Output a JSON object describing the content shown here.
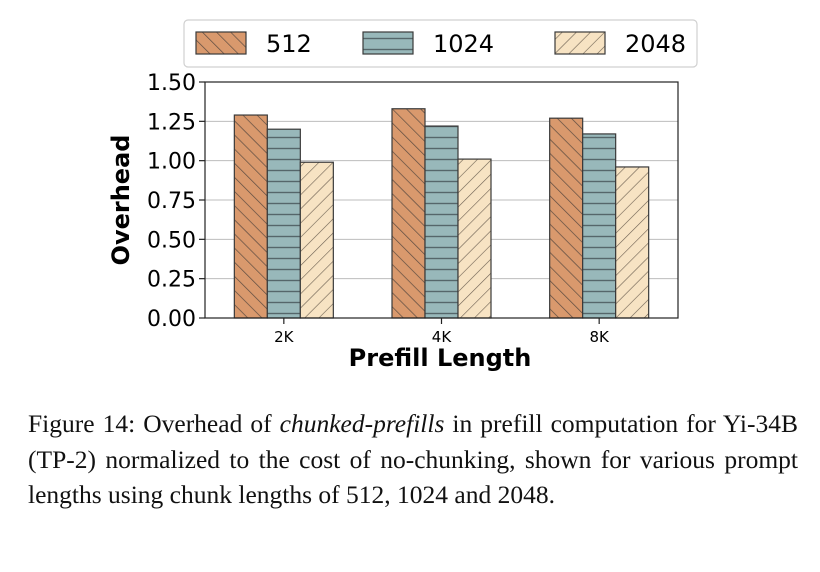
{
  "chart_data": {
    "type": "bar",
    "categories": [
      "2K",
      "4K",
      "8K"
    ],
    "series": [
      {
        "name": "512",
        "values": [
          1.29,
          1.33,
          1.27
        ],
        "color": "#d9996d",
        "hatch": "backslash"
      },
      {
        "name": "1024",
        "values": [
          1.2,
          1.22,
          1.17
        ],
        "color": "#98b8ba",
        "hatch": "horizontal"
      },
      {
        "name": "2048",
        "values": [
          0.99,
          1.01,
          0.96
        ],
        "color": "#f7e3c3",
        "hatch": "slash"
      }
    ],
    "xlabel": "Prefill Length",
    "ylabel": "Overhead",
    "ylim": [
      0,
      1.5
    ],
    "yticks": [
      "0.00",
      "0.25",
      "0.50",
      "0.75",
      "1.00",
      "1.25",
      "1.50"
    ],
    "grid": "horizontal",
    "legend_position": "top-center"
  },
  "caption": {
    "prefix": "Figure 14: Overhead of ",
    "emphasis": "chunked-prefills",
    "rest": " in prefill computation for Yi-34B (TP-2) normalized to the cost of no-chunking, shown for various prompt lengths using chunk lengths of 512, 1024 and 2048."
  }
}
